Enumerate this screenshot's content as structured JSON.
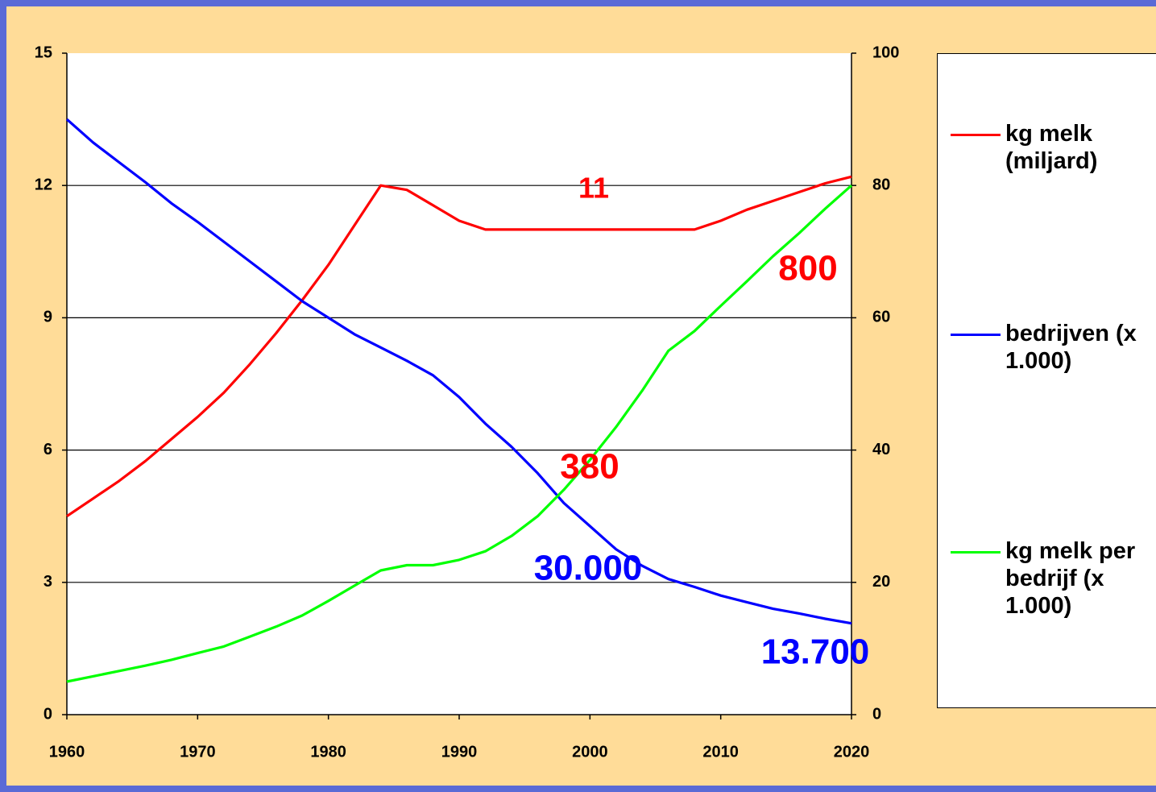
{
  "chart_data": {
    "type": "line",
    "x": [
      1960,
      1962,
      1964,
      1966,
      1968,
      1970,
      1972,
      1974,
      1976,
      1978,
      1980,
      1982,
      1984,
      1986,
      1988,
      1990,
      1992,
      1994,
      1996,
      1998,
      2000,
      2002,
      2004,
      2006,
      2008,
      2010,
      2012,
      2014,
      2016,
      2018,
      2020
    ],
    "series": [
      {
        "name": "kg melk (miljard)",
        "color": "#ff0000",
        "axis": "y",
        "values": [
          4.5,
          4.9,
          5.3,
          5.75,
          6.25,
          6.75,
          7.3,
          7.95,
          8.65,
          9.4,
          10.2,
          11.1,
          12.0,
          11.9,
          11.55,
          11.2,
          11.0,
          11.0,
          11.0,
          11.0,
          11.0,
          11.0,
          11.0,
          11.0,
          11.0,
          11.2,
          11.45,
          11.65,
          11.85,
          12.05,
          12.2
        ]
      },
      {
        "name": "bedrijven (x 1.000)",
        "color": "#0000ff",
        "axis": "y2",
        "values": [
          90,
          86.5,
          83.5,
          80.5,
          77.3,
          74.5,
          71.5,
          68.5,
          65.5,
          62.5,
          60,
          57.5,
          55.5,
          53.5,
          51.3,
          48,
          44,
          40.5,
          36.5,
          32,
          28.5,
          25,
          22.5,
          20.5,
          19.3,
          18,
          17,
          16,
          15.3,
          14.5,
          13.8
        ]
      },
      {
        "name": "kg melk per bedrijf (x 1.000)",
        "color": "#00ff00",
        "axis": "y2",
        "values": [
          5,
          5.8,
          6.6,
          7.4,
          8.3,
          9.3,
          10.3,
          11.8,
          13.3,
          15,
          17.2,
          19.5,
          21.8,
          22.6,
          22.6,
          23.4,
          24.7,
          27,
          30,
          34,
          38.5,
          43.5,
          49,
          55,
          58,
          61.8,
          65.5,
          69.3,
          72.8,
          76.5,
          80
        ]
      }
    ],
    "xlim": [
      1960,
      2020
    ],
    "xticks": [
      1960,
      1970,
      1980,
      1990,
      2000,
      2010,
      2020
    ],
    "ylim": [
      0,
      15
    ],
    "yticks": [
      0,
      3,
      6,
      9,
      12,
      15
    ],
    "y2lim": [
      0,
      100
    ],
    "y2ticks": [
      0,
      20,
      40,
      60,
      80,
      100
    ],
    "grid": true,
    "annotations": [
      {
        "text": "11",
        "color": "#ff0000"
      },
      {
        "text": "800",
        "color": "#ff0000"
      },
      {
        "text": "380",
        "color": "#ff0000"
      },
      {
        "text": "30.000",
        "color": "#0000ff"
      },
      {
        "text": "13.700",
        "color": "#0000ff"
      }
    ],
    "legend": "right"
  }
}
